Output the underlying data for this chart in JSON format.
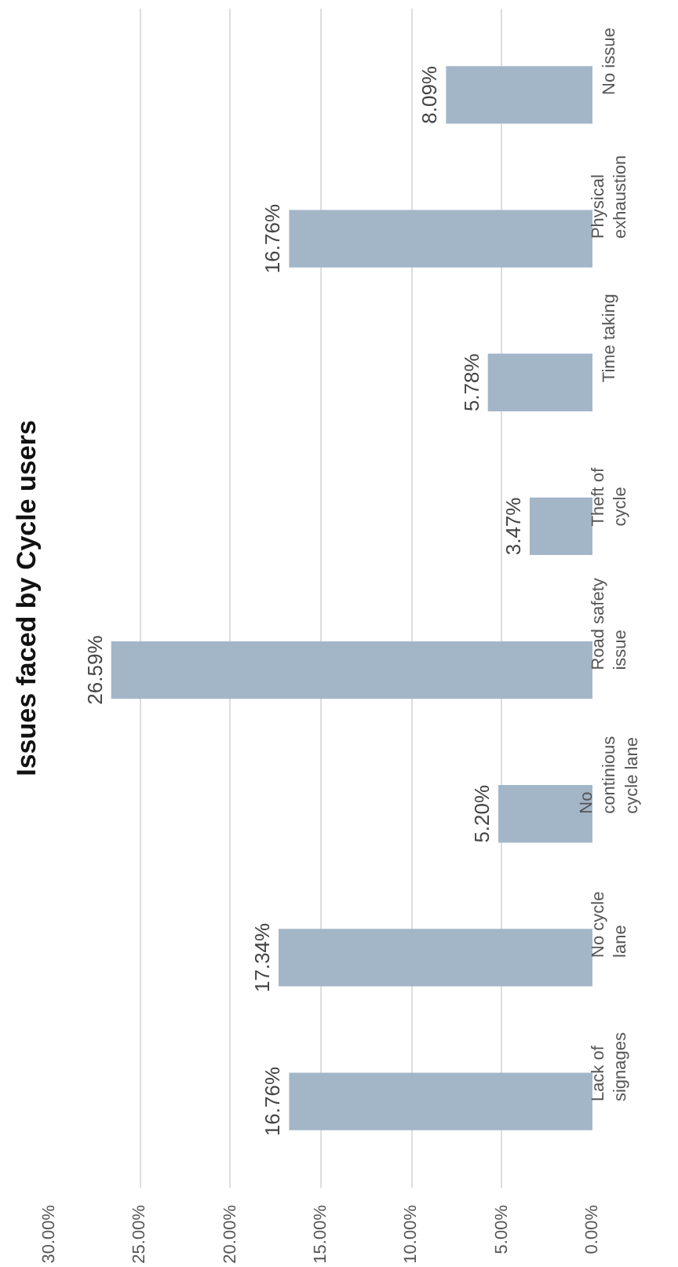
{
  "chart_data": {
    "type": "bar",
    "orientation": "horizontal",
    "title": "Issues faced by Cycle users",
    "categories": [
      "No issue",
      "Physical exhaustion",
      "Time taking",
      "Theft of cycle",
      "Road safety issue",
      "No continious cycle lane",
      "No cycle lane",
      "Lack of signages"
    ],
    "values": [
      8.09,
      16.76,
      5.78,
      3.47,
      26.59,
      5.2,
      17.34,
      16.76
    ],
    "value_labels": [
      "8.09%",
      "16.76%",
      "5.78%",
      "3.47%",
      "26.59%",
      "5.20%",
      "17.34%",
      "16.76%"
    ],
    "color": "#a3b6c8",
    "xlim": [
      30,
      0
    ],
    "xticks": [
      {
        "value": 30,
        "label": "30.00%"
      },
      {
        "value": 25,
        "label": "25.00%"
      },
      {
        "value": 20,
        "label": "20.00%"
      },
      {
        "value": 15,
        "label": "15.00%"
      },
      {
        "value": 10,
        "label": "10.00%"
      },
      {
        "value": 5,
        "label": "5.00%"
      },
      {
        "value": 0,
        "label": "0.00%"
      }
    ],
    "grid": "x"
  }
}
